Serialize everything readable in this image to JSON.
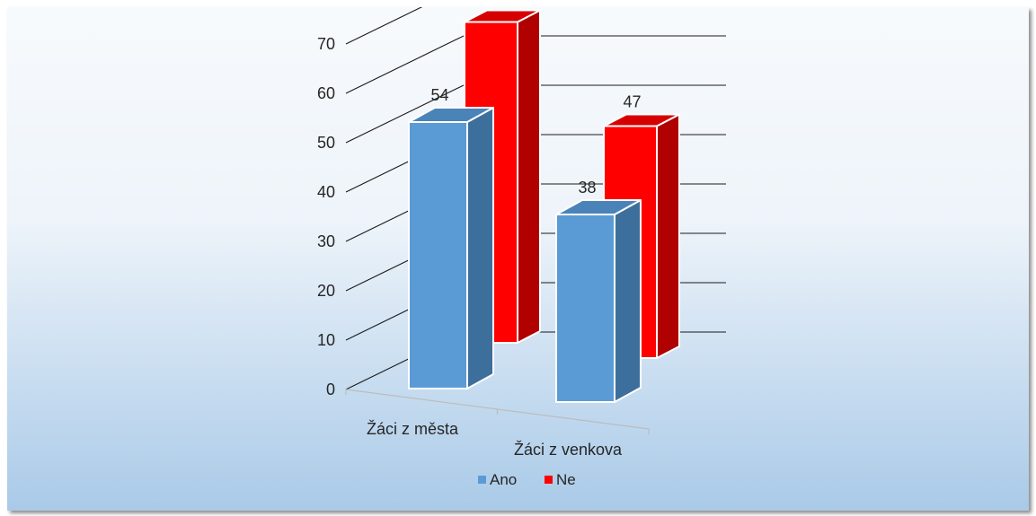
{
  "chart_data": {
    "type": "bar",
    "subtype": "3d-clustered-column",
    "categories": [
      "Žáci z města",
      "Žáci z venkova"
    ],
    "series": [
      {
        "name": "Ano",
        "values": [
          54,
          38
        ]
      },
      {
        "name": "Ne",
        "values": [
          65,
          47
        ]
      }
    ],
    "y_ticks": [
      0,
      10,
      20,
      30,
      40,
      50,
      60,
      70
    ],
    "ylim": [
      0,
      70
    ],
    "grid": true,
    "data_labels": true,
    "legend_position": "bottom",
    "colors": {
      "Ano_front": "#5b9bd5",
      "Ano_side": "#3d6f9c",
      "Ano_top": "#4a83b8",
      "Ne_front": "#ff0000",
      "Ne_side": "#b00000",
      "Ne_top": "#d60000",
      "background_top": "#f7fafd",
      "background_bottom": "#a9cae8"
    }
  }
}
